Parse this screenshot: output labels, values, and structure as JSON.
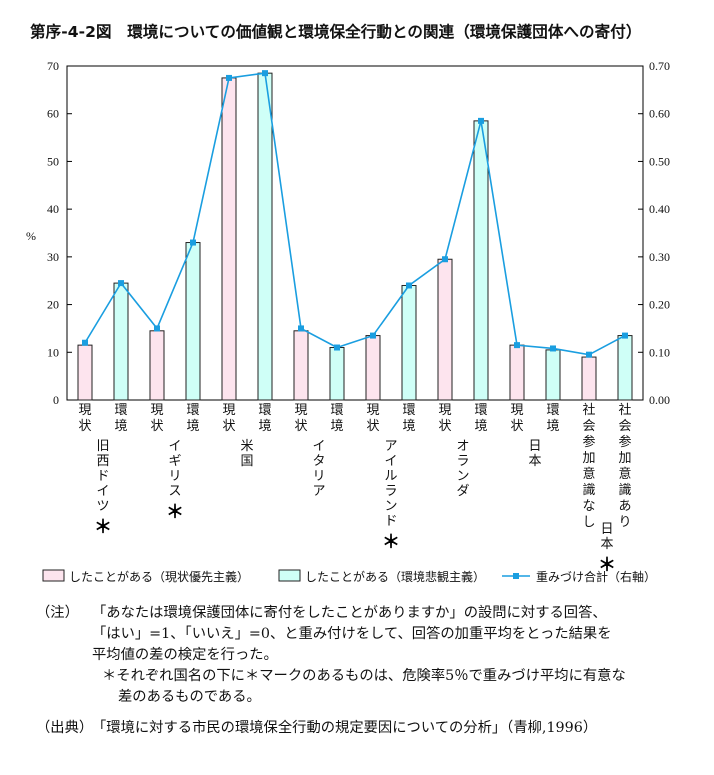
{
  "title": "第序-4-2図　環境についての価値観と環境保全行動との関連（環境保護団体への寄付）",
  "chart_data": {
    "type": "bar",
    "y_left_label": "%",
    "y_left_lim": [
      0,
      70
    ],
    "y_left_ticks": [
      "0",
      "10",
      "20",
      "30",
      "40",
      "50",
      "60",
      "70"
    ],
    "y_right_lim": [
      0,
      0.7
    ],
    "y_right_ticks": [
      "0.00",
      "0.10",
      "0.20",
      "0.30",
      "0.40",
      "0.50",
      "0.60",
      "0.70"
    ],
    "grid": false,
    "legend_position": "bottom",
    "colors": {
      "pink": "#fde4ee",
      "cyan": "#cffff7",
      "line": "#1a9ee0",
      "border": "#222222"
    },
    "legend": {
      "pink": "したことがある（現状優先主義）",
      "cyan": "したことがある（環境悲観主義）",
      "line": "重みづけ合計（右軸）"
    },
    "bars": [
      {
        "label": "現状",
        "series": "pink",
        "value": 11.5
      },
      {
        "label": "環境",
        "series": "cyan",
        "value": 24.5
      },
      {
        "label": "現状",
        "series": "pink",
        "value": 14.5
      },
      {
        "label": "環境",
        "series": "cyan",
        "value": 33.0
      },
      {
        "label": "現状",
        "series": "pink",
        "value": 67.5
      },
      {
        "label": "環境",
        "series": "cyan",
        "value": 68.5
      },
      {
        "label": "現状",
        "series": "pink",
        "value": 14.5
      },
      {
        "label": "環境",
        "series": "cyan",
        "value": 11.0
      },
      {
        "label": "現状",
        "series": "pink",
        "value": 13.5
      },
      {
        "label": "環境",
        "series": "cyan",
        "value": 24.0
      },
      {
        "label": "現状",
        "series": "pink",
        "value": 29.5
      },
      {
        "label": "環境",
        "series": "cyan",
        "value": 58.5
      },
      {
        "label": "現状",
        "series": "pink",
        "value": 11.5
      },
      {
        "label": "環境",
        "series": "cyan",
        "value": 10.5
      },
      {
        "label": "社会参加意識なし",
        "series": "pink",
        "value": 9.0
      },
      {
        "label": "社会参加意識あり",
        "series": "cyan",
        "value": 13.5
      }
    ],
    "line_values": [
      0.12,
      0.245,
      0.15,
      0.33,
      0.675,
      0.685,
      0.15,
      0.11,
      0.135,
      0.24,
      0.295,
      0.585,
      0.115,
      0.108,
      0.095,
      0.135
    ],
    "groups": [
      {
        "name": "旧西ドイツ",
        "star": "＊",
        "bars": [
          0,
          1
        ]
      },
      {
        "name": "イギリス",
        "star": "＊",
        "bars": [
          2,
          3
        ]
      },
      {
        "name": "米国",
        "star": "",
        "bars": [
          4,
          5
        ]
      },
      {
        "name": "イタリア",
        "star": "",
        "bars": [
          6,
          7
        ]
      },
      {
        "name": "アイルランド",
        "star": "＊",
        "bars": [
          8,
          9
        ]
      },
      {
        "name": "オランダ",
        "star": "",
        "bars": [
          10,
          11
        ]
      },
      {
        "name": "日本",
        "star": "",
        "bars": [
          12,
          13
        ]
      },
      {
        "name": "日本",
        "star": "＊",
        "bars": [
          14,
          15
        ]
      }
    ]
  },
  "notes": {
    "note_label": "（注）",
    "note_lines": [
      "「あなたは環境保護団体に寄付をしたことがありますか」の設問に対する回答、",
      "「はい」=1、「いいえ」=0、と重み付けをして、回答の加重平均をとった結果を",
      "平均値の差の検定を行った。"
    ],
    "star_lines": [
      "＊それぞれ国名の下に＊マークのあるものは、危険率5％で重みづけ平均に有意な",
      "差のあるものである。"
    ],
    "source_label": "（出典）",
    "source_text": "「環境に対する市民の環境保全行動の規定要因についての分析」（青柳,1996）"
  }
}
